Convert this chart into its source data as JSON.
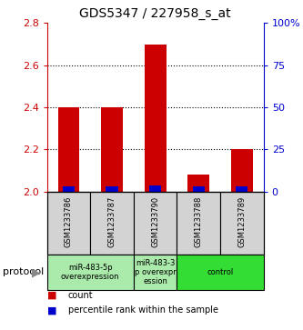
{
  "title": "GDS5347 / 227958_s_at",
  "samples": [
    "GSM1233786",
    "GSM1233787",
    "GSM1233790",
    "GSM1233788",
    "GSM1233789"
  ],
  "red_values": [
    2.4,
    2.4,
    2.7,
    2.08,
    2.2
  ],
  "blue_values": [
    2.025,
    2.025,
    2.03,
    2.025,
    2.025
  ],
  "y_min": 2.0,
  "y_max": 2.8,
  "y_ticks": [
    2.0,
    2.2,
    2.4,
    2.6,
    2.8
  ],
  "right_y_ticks": [
    0,
    25,
    50,
    75,
    100
  ],
  "right_y_labels": [
    "0",
    "25",
    "50",
    "75",
    "100%"
  ],
  "protocol_spans": [
    {
      "start": 0,
      "end": 1,
      "label": "miR-483-5p\noverexpression",
      "color": "#aaf0aa"
    },
    {
      "start": 2,
      "end": 2,
      "label": "miR-483-3\np overexpr\nession",
      "color": "#aaf0aa"
    },
    {
      "start": 3,
      "end": 4,
      "label": "control",
      "color": "#33dd33"
    }
  ],
  "bar_color_red": "#cc0000",
  "bar_color_blue": "#0000cc",
  "background_color": "#ffffff",
  "tick_color_left": "#cc0000",
  "tick_color_right": "#0000cc",
  "legend_red_label": "count",
  "legend_blue_label": "percentile rank within the sample",
  "protocol_label": "protocol",
  "bar_width": 0.5
}
